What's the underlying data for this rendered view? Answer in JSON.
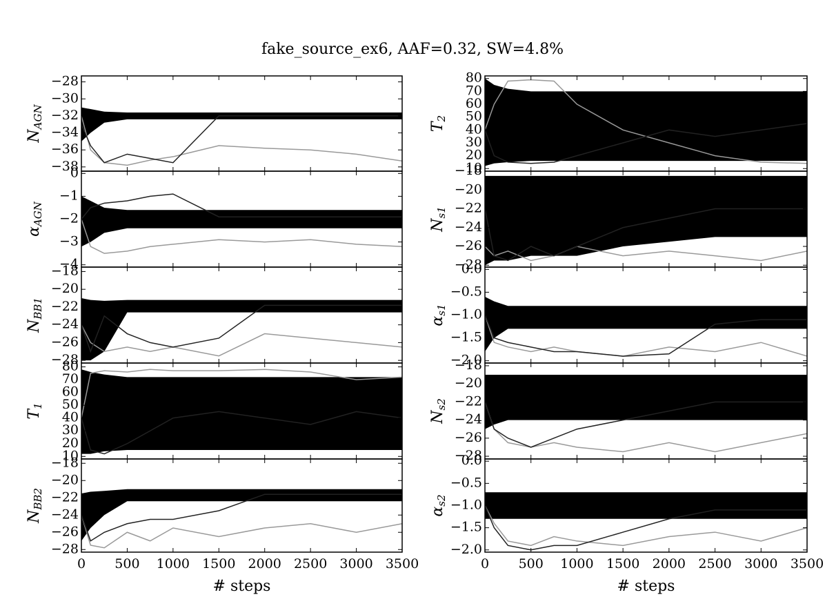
{
  "title": "fake_source_ex6, AAF=0.32, SW=4.8%",
  "x_axis": {
    "xlabel": "# steps",
    "xlim": [
      0,
      3500
    ],
    "xticks": [
      0,
      500,
      1000,
      1500,
      2000,
      2500,
      3000,
      3500
    ],
    "x": [
      0,
      100,
      250,
      500,
      750,
      1000,
      1500,
      2000,
      2500,
      3000,
      3500
    ]
  },
  "chart_data": [
    {
      "type": "line",
      "ylabel": "N",
      "ylabel_sub": "AGN",
      "ylim": [
        -38.5,
        -27.3
      ],
      "yticks": [
        {
          "value": -28,
          "label": "−28"
        },
        {
          "value": -30,
          "label": "−30"
        },
        {
          "value": -32,
          "label": "−32"
        },
        {
          "value": -34,
          "label": "−34"
        },
        {
          "value": -36,
          "label": "−36"
        },
        {
          "value": -38,
          "label": "−38"
        }
      ],
      "band": {
        "color": "#000000",
        "lower": [
          -35,
          -34,
          -32.8,
          -32.4,
          -32.4,
          -32.4,
          -32.4,
          -32.4,
          -32.4,
          -32.4,
          -32.4
        ],
        "upper": [
          -31,
          -31.2,
          -31.5,
          -31.6,
          -31.6,
          -31.6,
          -31.6,
          -31.6,
          -31.6,
          -31.6,
          -31.6
        ]
      },
      "series": [
        {
          "color": "#999999",
          "values": [
            -32,
            -36,
            -37.5,
            -37.8,
            -37.2,
            -36.8,
            -35.5,
            -35.8,
            -36,
            -36.5,
            -37.3
          ]
        },
        {
          "color": "#222222",
          "values": [
            -33,
            -35.5,
            -37.5,
            -36.5,
            -37,
            -37.5,
            -32,
            -32,
            -32,
            -32,
            -32
          ]
        }
      ]
    },
    {
      "type": "line",
      "ylabel": "α",
      "ylabel_sub": "AGN",
      "ylim": [
        -4.1,
        0.1
      ],
      "yticks": [
        0,
        {
          "value": -1,
          "label": "−1"
        },
        {
          "value": -2,
          "label": "−2"
        },
        {
          "value": -3,
          "label": "−3"
        },
        {
          "value": -4,
          "label": "−4"
        }
      ],
      "band": {
        "color": "#000000",
        "lower": [
          -3.2,
          -3,
          -2.6,
          -2.4,
          -2.4,
          -2.4,
          -2.4,
          -2.4,
          -2.4,
          -2.4,
          -2.4
        ],
        "upper": [
          -1,
          -1.2,
          -1.5,
          -1.6,
          -1.6,
          -1.6,
          -1.6,
          -1.6,
          -1.6,
          -1.6,
          -1.6
        ]
      },
      "series": [
        {
          "color": "#999999",
          "values": [
            -2,
            -3.2,
            -3.5,
            -3.4,
            -3.2,
            -3.1,
            -2.9,
            -3,
            -2.9,
            -3.1,
            -3.2
          ]
        },
        {
          "color": "#222222",
          "values": [
            -2,
            -1.5,
            -1.3,
            -1.2,
            -1,
            -0.9,
            -1.9,
            -1.9,
            -1.9,
            -1.9,
            -1.9
          ]
        }
      ]
    },
    {
      "type": "line",
      "ylabel": "N",
      "ylabel_sub": "BB1",
      "ylim": [
        -28.3,
        -17.5
      ],
      "yticks": [
        {
          "value": -18,
          "label": "−18"
        },
        {
          "value": -20,
          "label": "−20"
        },
        {
          "value": -22,
          "label": "−22"
        },
        {
          "value": -24,
          "label": "−24"
        },
        {
          "value": -26,
          "label": "−26"
        },
        {
          "value": -28,
          "label": "−28"
        }
      ],
      "band": {
        "color": "#000000",
        "lower": [
          -28,
          -28,
          -27,
          -22.6,
          -22.6,
          -22.6,
          -22.6,
          -22.6,
          -22.6,
          -22.6,
          -22.6
        ],
        "upper": [
          -21,
          -21.2,
          -21.3,
          -21.2,
          -21.2,
          -21.2,
          -21.2,
          -21.2,
          -21.2,
          -21.2,
          -21.2
        ]
      },
      "series": [
        {
          "color": "#999999",
          "values": [
            -24,
            -26,
            -27,
            -26.5,
            -27,
            -26.5,
            -27.5,
            -25,
            -25.5,
            -26,
            -26.5
          ]
        },
        {
          "color": "#222222",
          "values": [
            -24,
            -27,
            -23,
            -25,
            -26,
            -26.5,
            -25.5,
            -21.8,
            -21.8,
            -21.8,
            -21.8
          ]
        }
      ]
    },
    {
      "type": "line",
      "ylabel": "T",
      "ylabel_sub": "1",
      "ylim": [
        8,
        83
      ],
      "yticks": [
        10,
        20,
        30,
        40,
        50,
        60,
        70,
        80
      ],
      "band": {
        "color": "#000000",
        "lower": [
          12,
          12,
          14,
          15,
          15,
          15,
          15,
          15,
          15,
          15,
          15
        ],
        "upper": [
          78,
          76,
          74,
          72,
          72,
          72,
          72,
          72,
          72,
          72,
          72
        ]
      },
      "series": [
        {
          "color": "#999999",
          "values": [
            40,
            75,
            77,
            76,
            78,
            77,
            77,
            78,
            76,
            70,
            72
          ]
        },
        {
          "color": "#222222",
          "values": [
            40,
            15,
            12,
            20,
            30,
            40,
            45,
            40,
            35,
            45,
            40
          ]
        }
      ]
    },
    {
      "type": "line",
      "ylabel": "N",
      "ylabel_sub": "BB2",
      "ylim": [
        -28.3,
        -17.5
      ],
      "yticks": [
        {
          "value": -18,
          "label": "−18"
        },
        {
          "value": -20,
          "label": "−20"
        },
        {
          "value": -22,
          "label": "−22"
        },
        {
          "value": -24,
          "label": "−24"
        },
        {
          "value": -26,
          "label": "−26"
        },
        {
          "value": -28,
          "label": "−28"
        }
      ],
      "band": {
        "color": "#000000",
        "lower": [
          -27,
          -25.5,
          -24,
          -22.4,
          -22.4,
          -22.4,
          -22.4,
          -22.4,
          -22.4,
          -22.4,
          -22.4
        ],
        "upper": [
          -21.5,
          -21.3,
          -21.2,
          -21,
          -21,
          -21,
          -21,
          -21,
          -21,
          -21,
          -21
        ]
      },
      "series": [
        {
          "color": "#999999",
          "values": [
            -24,
            -27.5,
            -27.8,
            -26,
            -27,
            -25.5,
            -26.5,
            -25.5,
            -25,
            -26,
            -25
          ]
        },
        {
          "color": "#222222",
          "values": [
            -24,
            -27,
            -26,
            -25,
            -24.5,
            -24.5,
            -23.5,
            -21.6,
            -21.6,
            -21.6,
            -21.6
          ]
        }
      ]
    },
    {
      "type": "line",
      "ylabel": "T",
      "ylabel_sub": "2",
      "ylim": [
        8,
        82
      ],
      "yticks": [
        10,
        20,
        30,
        40,
        50,
        60,
        70,
        80
      ],
      "band": {
        "color": "#000000",
        "lower": [
          12,
          14,
          15,
          16,
          16,
          16,
          16,
          16,
          16,
          16,
          16
        ],
        "upper": [
          80,
          75,
          72,
          70,
          70,
          70,
          70,
          70,
          70,
          70,
          70
        ]
      },
      "series": [
        {
          "color": "#999999",
          "values": [
            40,
            60,
            78,
            79,
            78,
            60,
            40,
            30,
            20,
            15,
            14
          ]
        },
        {
          "color": "#222222",
          "values": [
            40,
            20,
            15,
            14,
            15,
            20,
            30,
            40,
            35,
            40,
            45
          ]
        }
      ]
    },
    {
      "type": "line",
      "ylabel": "N",
      "ylabel_sub": "s1",
      "ylim": [
        -28.2,
        -18
      ],
      "yticks": [
        {
          "value": -18,
          "label": "−18"
        },
        {
          "value": -20,
          "label": "−20"
        },
        {
          "value": -22,
          "label": "−22"
        },
        {
          "value": -24,
          "label": "−24"
        },
        {
          "value": -26,
          "label": "−26"
        },
        {
          "value": -28,
          "label": "−28"
        }
      ],
      "band": {
        "color": "#000000",
        "lower": [
          -28,
          -27.5,
          -27.5,
          -27,
          -27,
          -27,
          -26,
          -25.5,
          -25,
          -25,
          -25
        ],
        "upper": [
          -18.5,
          -18.5,
          -18.5,
          -18.5,
          -18.5,
          -18.5,
          -18.5,
          -18.5,
          -18.5,
          -18.5,
          -18.5
        ]
      },
      "series": [
        {
          "color": "#999999",
          "values": [
            -26,
            -27,
            -26.5,
            -27.5,
            -27,
            -26,
            -27,
            -26.5,
            -27,
            -27.5,
            -26.5
          ]
        },
        {
          "color": "#222222",
          "values": [
            -22,
            -27,
            -27.5,
            -26,
            -27,
            -26,
            -24,
            -23,
            -22,
            -22,
            -22
          ]
        }
      ]
    },
    {
      "type": "line",
      "ylabel": "α",
      "ylabel_sub": "s1",
      "ylim": [
        -2.05,
        0.05
      ],
      "yticks": [
        {
          "value": 0,
          "label": "0.0"
        },
        {
          "value": -0.5,
          "label": "−0.5"
        },
        {
          "value": -1,
          "label": "−1.0"
        },
        {
          "value": -1.5,
          "label": "−1.5"
        },
        {
          "value": -2,
          "label": "−2.0"
        }
      ],
      "band": {
        "color": "#000000",
        "lower": [
          -1.8,
          -1.5,
          -1.3,
          -1.3,
          -1.3,
          -1.3,
          -1.3,
          -1.3,
          -1.3,
          -1.3,
          -1.3
        ],
        "upper": [
          -0.6,
          -0.7,
          -0.8,
          -0.8,
          -0.8,
          -0.8,
          -0.8,
          -0.8,
          -0.8,
          -0.8,
          -0.8
        ]
      },
      "series": [
        {
          "color": "#999999",
          "values": [
            -1,
            -1.6,
            -1.7,
            -1.8,
            -1.7,
            -1.8,
            -1.9,
            -1.7,
            -1.8,
            -1.6,
            -1.9
          ]
        },
        {
          "color": "#222222",
          "values": [
            -1,
            -1.5,
            -1.6,
            -1.7,
            -1.8,
            -1.8,
            -1.9,
            -1.85,
            -1.2,
            -1.1,
            -1.1
          ]
        }
      ]
    },
    {
      "type": "line",
      "ylabel": "N",
      "ylabel_sub": "s2",
      "ylim": [
        -28.3,
        -17.7
      ],
      "yticks": [
        {
          "value": -18,
          "label": "−18"
        },
        {
          "value": -20,
          "label": "−20"
        },
        {
          "value": -22,
          "label": "−22"
        },
        {
          "value": -24,
          "label": "−24"
        },
        {
          "value": -26,
          "label": "−26"
        },
        {
          "value": -28,
          "label": "−28"
        }
      ],
      "band": {
        "color": "#000000",
        "lower": [
          -25,
          -24.5,
          -24,
          -24,
          -24,
          -24,
          -24,
          -24,
          -24,
          -24,
          -24
        ],
        "upper": [
          -19,
          -19,
          -19,
          -19,
          -19,
          -19,
          -19,
          -19,
          -19,
          -19,
          -19
        ]
      },
      "series": [
        {
          "color": "#999999",
          "values": [
            -22,
            -25,
            -26.5,
            -27,
            -26.5,
            -27,
            -27.5,
            -26.5,
            -27.5,
            -26.5,
            -25.5
          ]
        },
        {
          "color": "#222222",
          "values": [
            -22,
            -25,
            -26,
            -27,
            -26,
            -25,
            -24,
            -23,
            -22,
            -22,
            -22
          ]
        }
      ]
    },
    {
      "type": "line",
      "ylabel": "α",
      "ylabel_sub": "s2",
      "ylim": [
        -2.05,
        0.05
      ],
      "yticks": [
        {
          "value": 0,
          "label": "0.0"
        },
        {
          "value": -0.5,
          "label": "−0.5"
        },
        {
          "value": -1,
          "label": "−1.0"
        },
        {
          "value": -1.5,
          "label": "−1.5"
        },
        {
          "value": -2,
          "label": "−2.0"
        }
      ],
      "band": {
        "color": "#000000",
        "lower": [
          -1.3,
          -1.3,
          -1.3,
          -1.3,
          -1.3,
          -1.3,
          -1.3,
          -1.3,
          -1.3,
          -1.3,
          -1.3
        ],
        "upper": [
          -0.7,
          -0.7,
          -0.7,
          -0.7,
          -0.7,
          -0.7,
          -0.7,
          -0.7,
          -0.7,
          -0.7,
          -0.7
        ]
      },
      "series": [
        {
          "color": "#999999",
          "values": [
            -1,
            -1.4,
            -1.8,
            -1.9,
            -1.7,
            -1.8,
            -1.9,
            -1.7,
            -1.6,
            -1.8,
            -1.5
          ]
        },
        {
          "color": "#222222",
          "values": [
            -1,
            -1.5,
            -1.9,
            -2,
            -1.9,
            -1.9,
            -1.6,
            -1.3,
            -1.1,
            -1.1,
            -1.1
          ]
        }
      ]
    }
  ]
}
